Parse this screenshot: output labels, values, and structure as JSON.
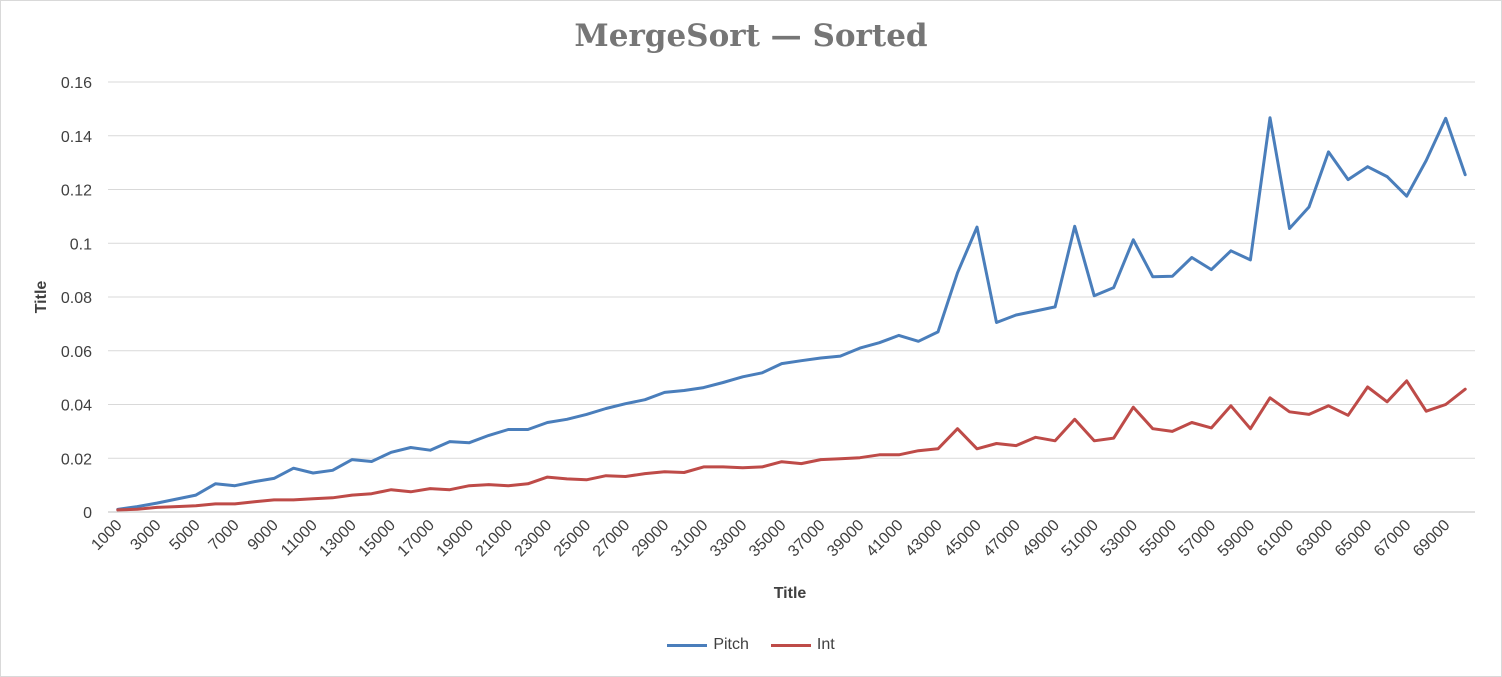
{
  "chart_data": {
    "type": "line",
    "title": "MergeSort — Sorted",
    "xlabel": "Title",
    "ylabel": "Title",
    "ylim": [
      0,
      0.16
    ],
    "yticks": [
      "0",
      "0.02",
      "0.04",
      "0.06",
      "0.08",
      "0.1",
      "0.12",
      "0.14",
      "0.16"
    ],
    "grid": true,
    "legend_position": "bottom",
    "x": [
      1000,
      2000,
      3000,
      4000,
      5000,
      6000,
      7000,
      8000,
      9000,
      10000,
      11000,
      12000,
      13000,
      14000,
      15000,
      16000,
      17000,
      18000,
      19000,
      20000,
      21000,
      22000,
      23000,
      24000,
      25000,
      26000,
      27000,
      28000,
      29000,
      30000,
      31000,
      32000,
      33000,
      34000,
      35000,
      36000,
      37000,
      38000,
      39000,
      40000,
      41000,
      42000,
      43000,
      44000,
      45000,
      46000,
      47000,
      48000,
      49000,
      50000,
      51000,
      52000,
      53000,
      54000,
      55000,
      56000,
      57000,
      58000,
      59000,
      60000,
      61000,
      62000,
      63000,
      64000,
      65000,
      66000,
      67000,
      68000,
      69000,
      70000
    ],
    "x_tick_labels": [
      "1000",
      "3000",
      "5000",
      "7000",
      "9000",
      "11000",
      "13000",
      "15000",
      "17000",
      "19000",
      "21000",
      "23000",
      "25000",
      "27000",
      "29000",
      "31000",
      "33000",
      "35000",
      "37000",
      "39000",
      "41000",
      "43000",
      "45000",
      "47000",
      "49000",
      "51000",
      "53000",
      "55000",
      "57000",
      "59000",
      "61000",
      "63000",
      "65000",
      "67000",
      "69000"
    ],
    "series": [
      {
        "name": "Pitch",
        "color": "#4a7ebb",
        "values": [
          0.001,
          0.002,
          0.0033,
          0.0048,
          0.0063,
          0.0105,
          0.0098,
          0.0113,
          0.0125,
          0.0163,
          0.0145,
          0.0155,
          0.0195,
          0.0188,
          0.0222,
          0.024,
          0.023,
          0.0262,
          0.0258,
          0.0285,
          0.0307,
          0.0307,
          0.0333,
          0.0345,
          0.0363,
          0.0385,
          0.0403,
          0.0418,
          0.0445,
          0.0452,
          0.0463,
          0.0482,
          0.0503,
          0.0518,
          0.0552,
          0.0563,
          0.0573,
          0.058,
          0.061,
          0.063,
          0.0657,
          0.0635,
          0.067,
          0.089,
          0.106,
          0.0705,
          0.0733,
          0.0748,
          0.0763,
          0.1063,
          0.0805,
          0.0835,
          0.1013,
          0.0875,
          0.0877,
          0.0947,
          0.0902,
          0.0972,
          0.0938,
          0.1467,
          0.1055,
          0.1135,
          0.134,
          0.1237,
          0.1285,
          0.1248,
          0.1175,
          0.1308,
          0.1465,
          0.1255
        ]
      },
      {
        "name": "Int",
        "color": "#be4b48",
        "values": [
          0.0008,
          0.001,
          0.0017,
          0.002,
          0.0023,
          0.003,
          0.003,
          0.0038,
          0.0045,
          0.0045,
          0.0049,
          0.0053,
          0.0063,
          0.0068,
          0.0083,
          0.0075,
          0.0087,
          0.0083,
          0.0098,
          0.0102,
          0.0098,
          0.0105,
          0.013,
          0.0123,
          0.012,
          0.0135,
          0.0132,
          0.0143,
          0.015,
          0.0147,
          0.0168,
          0.0168,
          0.0165,
          0.0168,
          0.0187,
          0.018,
          0.0195,
          0.0198,
          0.0202,
          0.0213,
          0.0213,
          0.0228,
          0.0235,
          0.031,
          0.0235,
          0.0255,
          0.0247,
          0.0278,
          0.0265,
          0.0345,
          0.0265,
          0.0275,
          0.039,
          0.031,
          0.03,
          0.0333,
          0.0313,
          0.0395,
          0.031,
          0.0425,
          0.0373,
          0.0363,
          0.0395,
          0.036,
          0.0465,
          0.041,
          0.0488,
          0.0375,
          0.04,
          0.0457
        ]
      }
    ]
  }
}
